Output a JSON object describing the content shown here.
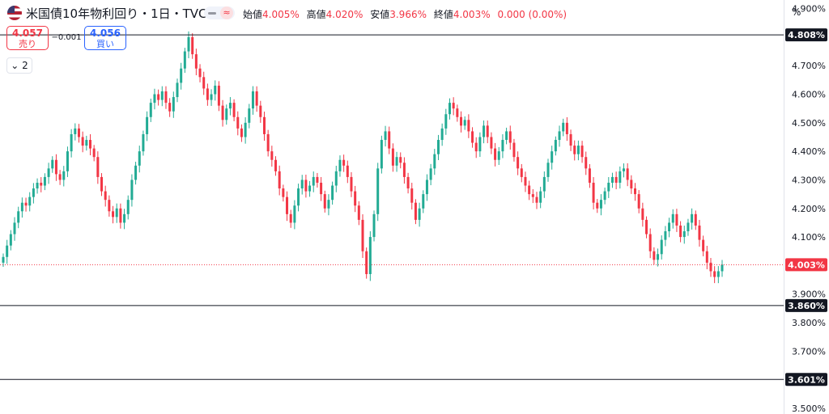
{
  "header": {
    "symbol": "米国債10年物利回り・1日・TVC",
    "ohlc": [
      {
        "label": "始値",
        "value": "4.005%"
      },
      {
        "label": "高値",
        "value": "4.020%"
      },
      {
        "label": "安値",
        "value": "3.966%"
      },
      {
        "label": "終値",
        "value": "4.003%"
      }
    ],
    "change": "0.000 (0.00%)",
    "wave_icon": "≈"
  },
  "trade": {
    "sell_price": "4.057",
    "sell_label": "売り",
    "spread": "−0.001",
    "buy_price": "4.056",
    "buy_label": "買い"
  },
  "collapse_count": "2",
  "axis_unit": "%",
  "colors": {
    "up": "#22ab94",
    "down": "#f23645",
    "hline": "#131722",
    "lastline": "#f23645",
    "label_bg": "#131722"
  },
  "chart_data": {
    "type": "candlestick",
    "ylim": [
      3.48,
      4.93
    ],
    "yticks": [
      "4.900%",
      "4.700%",
      "4.600%",
      "4.500%",
      "4.400%",
      "4.300%",
      "4.200%",
      "4.100%",
      "3.900%",
      "3.800%",
      "3.700%",
      "3.500%"
    ],
    "horizontal_lines": [
      {
        "value": 4.808,
        "label": "4.808%"
      },
      {
        "value": 3.86,
        "label": "3.860%"
      },
      {
        "value": 3.601,
        "label": "3.601%"
      }
    ],
    "last_price": {
      "value": 4.003,
      "label": "4.003%"
    },
    "closes": [
      4.03,
      4.07,
      4.11,
      4.15,
      4.19,
      4.22,
      4.21,
      4.24,
      4.27,
      4.29,
      4.28,
      4.31,
      4.34,
      4.37,
      4.32,
      4.3,
      4.33,
      4.4,
      4.46,
      4.48,
      4.45,
      4.42,
      4.44,
      4.41,
      4.38,
      4.31,
      4.26,
      4.23,
      4.19,
      4.17,
      4.2,
      4.15,
      4.18,
      4.23,
      4.3,
      4.35,
      4.4,
      4.46,
      4.52,
      4.57,
      4.6,
      4.58,
      4.61,
      4.57,
      4.54,
      4.59,
      4.64,
      4.69,
      4.75,
      4.8,
      4.74,
      4.69,
      4.66,
      4.62,
      4.58,
      4.6,
      4.63,
      4.56,
      4.51,
      4.55,
      4.57,
      4.52,
      4.48,
      4.45,
      4.5,
      4.55,
      4.61,
      4.56,
      4.52,
      4.46,
      4.4,
      4.37,
      4.33,
      4.27,
      4.24,
      4.18,
      4.15,
      4.21,
      4.27,
      4.3,
      4.26,
      4.28,
      4.31,
      4.29,
      4.25,
      4.2,
      4.23,
      4.28,
      4.33,
      4.37,
      4.35,
      4.31,
      4.26,
      4.21,
      4.16,
      4.05,
      3.97,
      4.1,
      4.18,
      4.34,
      4.44,
      4.47,
      4.41,
      4.35,
      4.38,
      4.36,
      4.31,
      4.27,
      4.22,
      4.16,
      4.2,
      4.25,
      4.3,
      4.34,
      4.39,
      4.44,
      4.48,
      4.53,
      4.57,
      4.55,
      4.52,
      4.49,
      4.51,
      4.47,
      4.43,
      4.4,
      4.45,
      4.49,
      4.45,
      4.41,
      4.37,
      4.4,
      4.44,
      4.47,
      4.43,
      4.38,
      4.34,
      4.31,
      4.28,
      4.25,
      4.24,
      4.22,
      4.26,
      4.31,
      4.36,
      4.4,
      4.44,
      4.47,
      4.5,
      4.46,
      4.42,
      4.39,
      4.42,
      4.38,
      4.34,
      4.29,
      4.22,
      4.2,
      4.23,
      4.26,
      4.29,
      4.31,
      4.29,
      4.33,
      4.34,
      4.3,
      4.27,
      4.25,
      4.2,
      4.16,
      4.11,
      4.05,
      4.02,
      4.04,
      4.09,
      4.12,
      4.15,
      4.18,
      4.14,
      4.1,
      4.12,
      4.15,
      4.18,
      4.14,
      4.09,
      4.05,
      4.01,
      3.98,
      3.96,
      3.98,
      4.003
    ]
  }
}
